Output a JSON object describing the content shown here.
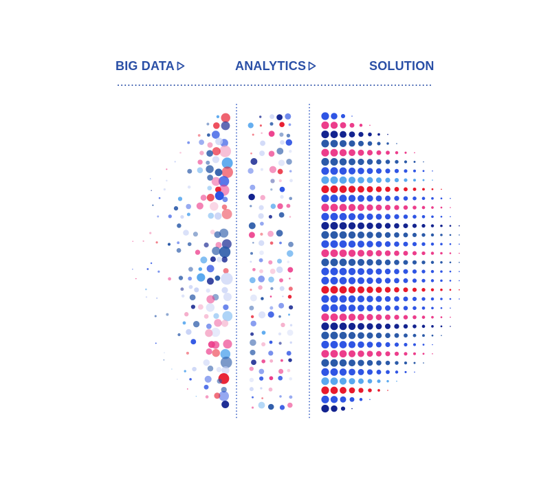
{
  "stages": [
    {
      "label": "BIG DATA",
      "arrow": true
    },
    {
      "label": "ANALYTICS",
      "arrow": true
    },
    {
      "label": "SOLUTION",
      "arrow": false
    }
  ],
  "palette": {
    "red": "#e8192c",
    "pink": "#ec3d8b",
    "light_pink": "#f4a6c6",
    "royal_blue": "#2f55e4",
    "navy": "#13238f",
    "steel_blue": "#2b5aa8",
    "sky_blue": "#59a8ee",
    "lavender": "#c9d3f6",
    "title": "#2a4fa6"
  },
  "arrow_icon": "outline-triangle-right-icon"
}
